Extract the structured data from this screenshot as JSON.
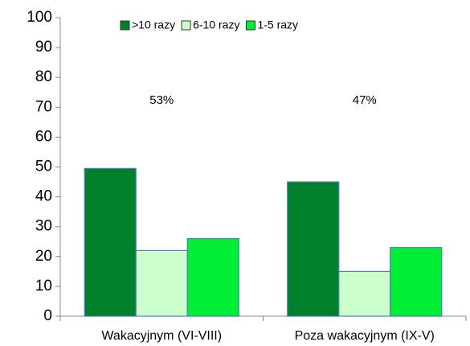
{
  "chart_data": {
    "type": "bar",
    "categories": [
      "Wakacyjnym (VI-VIII)",
      "Poza wakacyjnym (IX-V)"
    ],
    "series": [
      {
        "name": ">10 razy",
        "color": "#00802a",
        "values": [
          49.5,
          45
        ]
      },
      {
        "name": "6-10 razy",
        "color": "#ccffcc",
        "values": [
          22,
          15
        ]
      },
      {
        "name": "1-5 razy",
        "color": "#00ee33",
        "values": [
          26,
          23
        ]
      }
    ],
    "annotations": [
      "53%",
      "47%"
    ],
    "ylim": [
      0,
      100
    ],
    "yticks": [
      0,
      10,
      20,
      30,
      40,
      50,
      60,
      70,
      80,
      90,
      100
    ],
    "legend": "top"
  }
}
